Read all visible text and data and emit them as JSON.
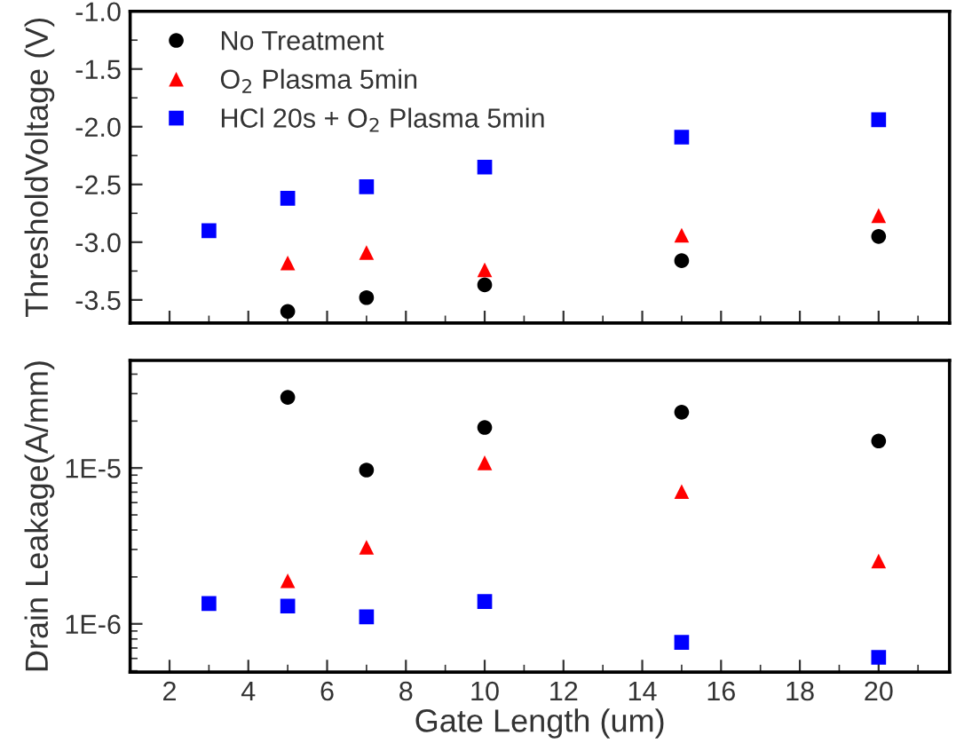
{
  "chart_data": [
    {
      "type": "scatter",
      "ylabel": "ThresholdVoltage (V)",
      "xlim": [
        1,
        21.8
      ],
      "ylim": [
        -3.7,
        -1.0
      ],
      "xticks": [
        {
          "value": 2,
          "label": null
        },
        {
          "value": 4,
          "label": null
        },
        {
          "value": 6,
          "label": null
        },
        {
          "value": 8,
          "label": null
        },
        {
          "value": 10,
          "label": null
        },
        {
          "value": 12,
          "label": null
        },
        {
          "value": 14,
          "label": null
        },
        {
          "value": 16,
          "label": null
        },
        {
          "value": 18,
          "label": null
        },
        {
          "value": 20,
          "label": null
        }
      ],
      "yticks": [
        {
          "value": -1.0,
          "label": "-1.0"
        },
        {
          "value": -1.5,
          "label": "-1.5"
        },
        {
          "value": -2.0,
          "label": "-2.0"
        },
        {
          "value": -2.5,
          "label": "-2.5"
        },
        {
          "value": -3.0,
          "label": "-3.0"
        },
        {
          "value": -3.5,
          "label": "-3.5"
        }
      ],
      "tick_labels": "y",
      "legend": "top left",
      "grid": false,
      "series": [
        {
          "name": "No Treatment",
          "color": "#000000",
          "marker": "circle",
          "x": [
            5,
            7,
            10,
            15,
            20
          ],
          "values": [
            -3.6,
            -3.48,
            -3.37,
            -3.16,
            -2.95
          ]
        },
        {
          "name": "O$_{2}$ Plasma 5min",
          "color": "#ff0000",
          "marker": "triangle",
          "x": [
            5,
            7,
            10,
            15,
            20
          ],
          "values": [
            -3.18,
            -3.09,
            -3.24,
            -2.94,
            -2.77
          ]
        },
        {
          "name": "HCl 20s + O$_{2}$ Plasma 5min",
          "color": "#0000ff",
          "marker": "square",
          "x": [
            3,
            5,
            7,
            10,
            15,
            20
          ],
          "values": [
            -2.9,
            -2.62,
            -2.52,
            -2.35,
            -2.09,
            -1.94
          ]
        }
      ]
    },
    {
      "type": "scatter",
      "ylabel": "Drain Leakage(A/mm)",
      "xlabel": "Gate Length (um)",
      "log": "y",
      "xlim": [
        1,
        21.8
      ],
      "ylim": [
        4.9e-07,
        4.9e-05
      ],
      "xticks": [
        2,
        4,
        6,
        8,
        10,
        12,
        14,
        16,
        18,
        20
      ],
      "yticks": [
        {
          "value": 1e-06,
          "label": "1E-6"
        },
        {
          "value": 1e-05,
          "label": "1E-5"
        }
      ],
      "grid": false,
      "series": [
        {
          "color": "#000000",
          "marker": "circle",
          "x": [
            5,
            7,
            10,
            15,
            20
          ],
          "values": [
            2.84e-05,
            9.7e-06,
            1.82e-05,
            2.28e-05,
            1.49e-05
          ]
        },
        {
          "color": "#ff0000",
          "marker": "triangle",
          "x": [
            5,
            7,
            10,
            15,
            20
          ],
          "values": [
            1.89e-06,
            3.1e-06,
            1.08e-05,
            7.06e-06,
            2.53e-06
          ]
        },
        {
          "color": "#0000ff",
          "marker": "square",
          "x": [
            3,
            5,
            7,
            10,
            15,
            20
          ],
          "values": [
            1.35e-06,
            1.3e-06,
            1.11e-06,
            1.39e-06,
            7.6e-07,
            6.1e-07
          ]
        }
      ]
    }
  ]
}
